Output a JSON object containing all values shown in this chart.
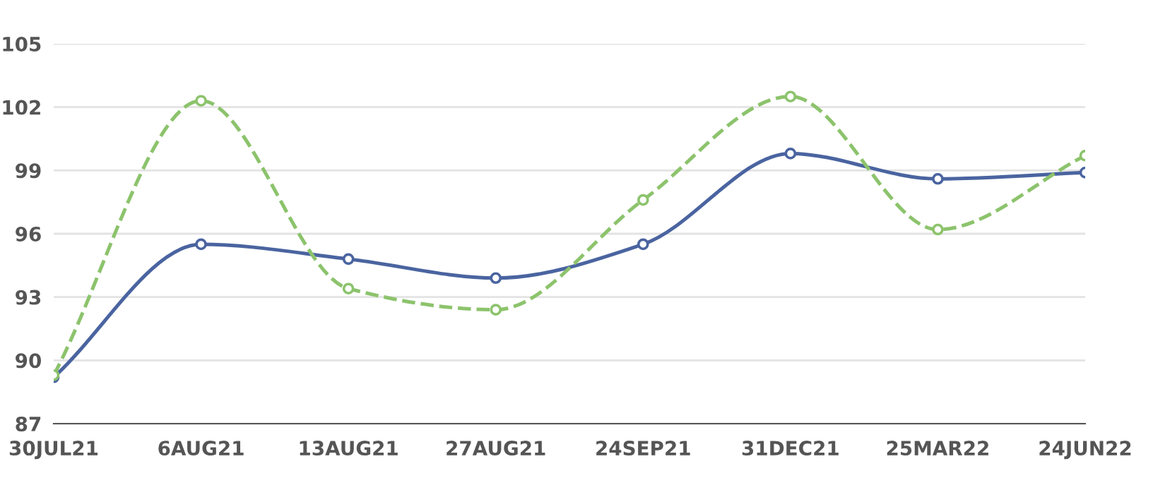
{
  "chart_data": {
    "type": "line",
    "categories": [
      "30JUL21",
      "6AUG21",
      "13AUG21",
      "27AUG21",
      "24SEP21",
      "31DEC21",
      "25MAR22",
      "24JUN22"
    ],
    "series": [
      {
        "color": "#4a64a0",
        "line_style": "solid",
        "values": [
          89.2,
          95.5,
          94.8,
          93.9,
          95.5,
          99.8,
          98.6,
          98.9
        ]
      },
      {
        "color": "#8cc36c",
        "line_style": "dashed",
        "values": [
          89.3,
          102.3,
          93.4,
          92.4,
          97.6,
          102.5,
          96.2,
          99.7
        ]
      }
    ],
    "ylim": [
      87,
      105
    ],
    "yticks": [
      87,
      90,
      93,
      96,
      99,
      102,
      105
    ],
    "grid": "y",
    "marker": "circle"
  }
}
